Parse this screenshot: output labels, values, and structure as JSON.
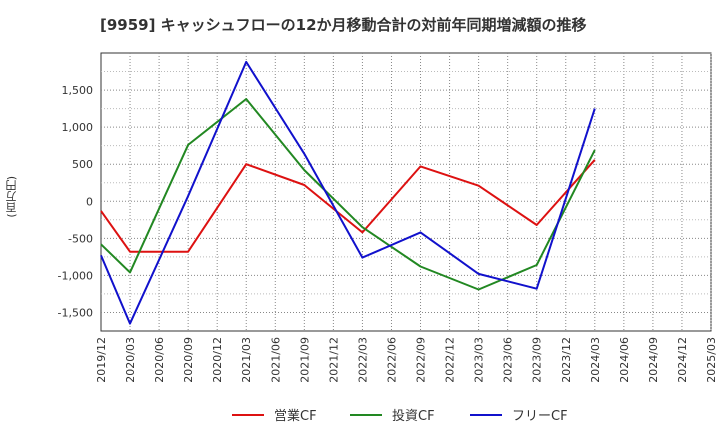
{
  "chart_data": {
    "type": "line",
    "title": "[9959]  キャッシュフローの12か月移動合計の対前年同期増減額の推移",
    "ylabel": "(百万円)",
    "xlabel": "",
    "ylim": [
      -1750,
      2000
    ],
    "yticks": [
      -1500,
      -1000,
      -500,
      0,
      500,
      1000,
      1500
    ],
    "ytick_labels": [
      "-1,500",
      "-1,000",
      "-500",
      "0",
      "500",
      "1,000",
      "1,500"
    ],
    "xticks": [
      "2019/12",
      "2020/03",
      "2020/06",
      "2020/09",
      "2020/12",
      "2021/03",
      "2021/06",
      "2021/09",
      "2021/12",
      "2022/03",
      "2022/06",
      "2022/09",
      "2022/12",
      "2023/03",
      "2023/06",
      "2023/09",
      "2023/12",
      "2024/03",
      "2024/06",
      "2024/09",
      "2024/12",
      "2025/03"
    ],
    "grid": true,
    "legend_position": "bottom",
    "series": [
      {
        "name": "営業CF",
        "color": "#dd1111",
        "x": [
          "2019/12",
          "2020/03",
          "2020/09",
          "2021/03",
          "2021/09",
          "2022/03",
          "2022/09",
          "2023/03",
          "2023/09",
          "2024/03"
        ],
        "values": [
          -130,
          -680,
          -680,
          500,
          220,
          -420,
          470,
          210,
          -320,
          560
        ]
      },
      {
        "name": "投資CF",
        "color": "#228822",
        "x": [
          "2019/12",
          "2020/03",
          "2020/09",
          "2021/03",
          "2021/09",
          "2022/03",
          "2022/09",
          "2023/03",
          "2023/09",
          "2024/03"
        ],
        "values": [
          -580,
          -960,
          760,
          1380,
          420,
          -350,
          -880,
          -1190,
          -860,
          690
        ]
      },
      {
        "name": "フリーCF",
        "color": "#1111cc",
        "x": [
          "2019/12",
          "2020/03",
          "2020/09",
          "2021/03",
          "2021/09",
          "2022/03",
          "2022/09",
          "2023/03",
          "2023/09",
          "2024/03"
        ],
        "values": [
          -730,
          -1650,
          70,
          1880,
          640,
          -760,
          -420,
          -980,
          -1180,
          1250
        ]
      }
    ]
  }
}
